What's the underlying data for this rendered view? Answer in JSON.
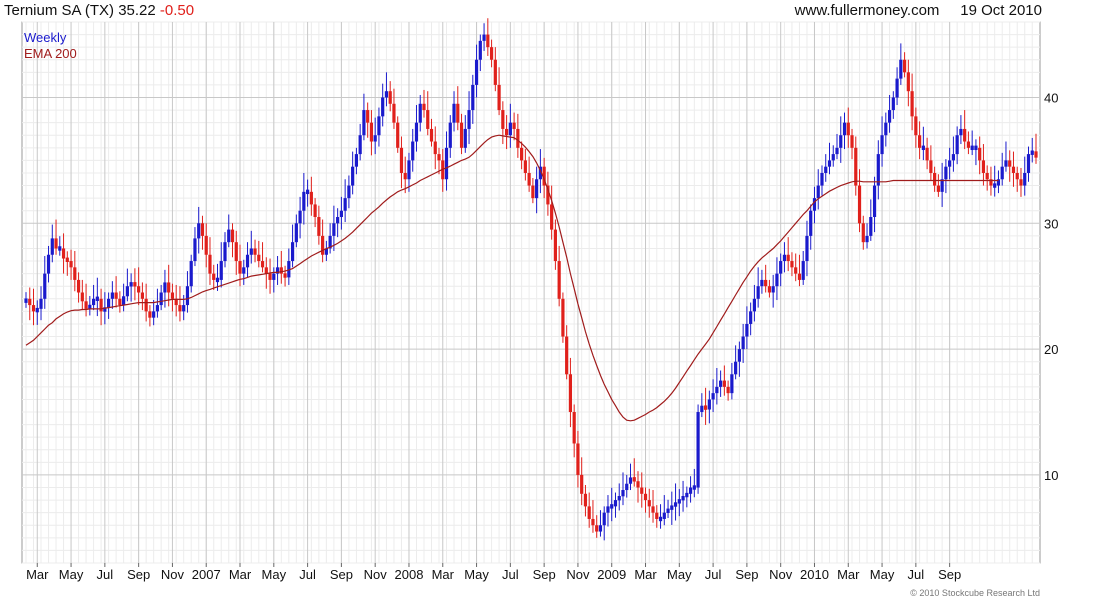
{
  "header": {
    "ticker": "Ternium SA (TX)",
    "price": "35.22",
    "change": "-0.50",
    "site": "www.fullermoney.com",
    "date": "19 Oct 2010"
  },
  "legend": {
    "weekly": "Weekly",
    "ema": "EMA 200"
  },
  "copyright": "© 2010 Stockcube Research Ltd",
  "colors": {
    "up": "#1a1acc",
    "down": "#e0201b",
    "ema": "#a01c1c",
    "grid": "#c8c8c8",
    "minorgrid": "#ececec"
  },
  "chart_data": {
    "type": "line",
    "title": "Ternium SA (TX) 35.22 -0.50",
    "ylabel": "",
    "ylim": [
      3,
      46
    ],
    "y_ticks": [
      10,
      20,
      30,
      40
    ],
    "x_ticks": [
      "Mar",
      "May",
      "Jul",
      "Sep",
      "Nov",
      "2007",
      "Mar",
      "May",
      "Jul",
      "Sep",
      "Nov",
      "2008",
      "Mar",
      "May",
      "Jul",
      "Sep",
      "Nov",
      "2009",
      "Mar",
      "May",
      "Jul",
      "Sep",
      "Nov",
      "2010",
      "Mar",
      "May",
      "Jul",
      "Sep"
    ],
    "x_tick_weeks": [
      3,
      12,
      21,
      30,
      39,
      48,
      57,
      66,
      75,
      84,
      93,
      102,
      111,
      120,
      129,
      138,
      147,
      156,
      165,
      174,
      183,
      192,
      201,
      210,
      219,
      228,
      237,
      246
    ],
    "series": [
      {
        "name": "Weekly",
        "style": "candlestick",
        "values": [
          24,
          23.5,
          23,
          23.2,
          24,
          26,
          27.5,
          28.8,
          28,
          28,
          27.2,
          27,
          26.5,
          25.5,
          24.5,
          23.8,
          23.2,
          23.5,
          24,
          24,
          23,
          23.3,
          24,
          24.5,
          24,
          23.5,
          24.2,
          25,
          25.3,
          25,
          24.5,
          24,
          23,
          22.5,
          23,
          23.5,
          24.5,
          25.3,
          24.5,
          24,
          23.5,
          23,
          23.5,
          25,
          27,
          28.8,
          30,
          29,
          27.5,
          26,
          25.5,
          25.5,
          27,
          28.5,
          29.5,
          28.5,
          27,
          26,
          26.5,
          27.5,
          28,
          27.5,
          27,
          26.5,
          26,
          25.5,
          26,
          26.5,
          26,
          25.7,
          27,
          28.5,
          30,
          31,
          32.5,
          32.5,
          31.5,
          30.5,
          29,
          27.5,
          28,
          29,
          30,
          30.5,
          31,
          32,
          33,
          34.5,
          35.5,
          37,
          39,
          38,
          36.5,
          37,
          38.5,
          40,
          40.5,
          39.5,
          38,
          36,
          34,
          33.5,
          35,
          36.5,
          38,
          39.5,
          39,
          37.5,
          36.5,
          35.5,
          35,
          33.5,
          36,
          38,
          39.5,
          38,
          36,
          37.5,
          39,
          41,
          43,
          44.5,
          45,
          44,
          43,
          41,
          39,
          37.5,
          37,
          38,
          37.5,
          36,
          35,
          34,
          33,
          32,
          33.5,
          34.5,
          33,
          31.5,
          29.5,
          27,
          24,
          21,
          18,
          15,
          12.5,
          10,
          8.5,
          7.5,
          6.5,
          6,
          5.5,
          6,
          7,
          7.5,
          7.5,
          8,
          8.3,
          8.8,
          9.3,
          9.8,
          9.5,
          9,
          8.5,
          8,
          7.5,
          7,
          6.5,
          6.5,
          7,
          7.3,
          7.5,
          7.8,
          8,
          8.3,
          8.5,
          9,
          9,
          15,
          15.5,
          15.2,
          16,
          16.5,
          17,
          17.5,
          17,
          16.5,
          18,
          19,
          20,
          21,
          22,
          23,
          24,
          25,
          25.5,
          25,
          24.5,
          25,
          26,
          27,
          27.5,
          27,
          26.5,
          26,
          25.5,
          27,
          29,
          31,
          32,
          33,
          34,
          34.5,
          35,
          35.5,
          36,
          37,
          38,
          37,
          36,
          33,
          30,
          28.5,
          29,
          30.5,
          33,
          35.5,
          37,
          38,
          39,
          40,
          41.5,
          43,
          42,
          40.5,
          38.5,
          37,
          36,
          36,
          35,
          34,
          33,
          32.5,
          33.5,
          34.5,
          35,
          35.5,
          37,
          37.5,
          36.5,
          36,
          36,
          36,
          35,
          34,
          33.5,
          33,
          33,
          33.5,
          34.5,
          35,
          34.5,
          34,
          33.5,
          33,
          34,
          35.5,
          35.72,
          35.22
        ]
      },
      {
        "name": "EMA 200",
        "style": "line",
        "values": [
          20.3,
          20.5,
          20.7,
          21,
          21.3,
          21.6,
          21.9,
          22.1,
          22.4,
          22.6,
          22.8,
          22.95,
          23.05,
          23.1,
          23.1,
          23.15,
          23.15,
          23.2,
          23.2,
          23.2,
          23.2,
          23.25,
          23.3,
          23.35,
          23.4,
          23.45,
          23.5,
          23.55,
          23.6,
          23.65,
          23.7,
          23.7,
          23.7,
          23.7,
          23.7,
          23.75,
          23.8,
          23.85,
          23.9,
          23.95,
          23.95,
          23.95,
          23.95,
          24,
          24.1,
          24.25,
          24.4,
          24.55,
          24.65,
          24.75,
          24.85,
          24.95,
          25.05,
          25.15,
          25.25,
          25.35,
          25.45,
          25.55,
          25.6,
          25.7,
          25.8,
          25.85,
          25.9,
          25.95,
          26,
          26.05,
          26.1,
          26.1,
          26.15,
          26.2,
          26.3,
          26.4,
          26.6,
          26.8,
          27,
          27.2,
          27.4,
          27.55,
          27.7,
          27.85,
          28,
          28.1,
          28.25,
          28.4,
          28.6,
          28.8,
          29.05,
          29.3,
          29.6,
          29.9,
          30.2,
          30.5,
          30.8,
          31.05,
          31.3,
          31.6,
          31.85,
          32.1,
          32.3,
          32.5,
          32.65,
          32.75,
          32.9,
          33.05,
          33.2,
          33.4,
          33.55,
          33.7,
          33.85,
          34,
          34.15,
          34.3,
          34.4,
          34.55,
          34.7,
          34.85,
          35,
          35.1,
          35.25,
          35.5,
          35.8,
          36.1,
          36.4,
          36.65,
          36.85,
          36.95,
          37,
          36.95,
          36.9,
          36.85,
          36.8,
          36.6,
          36.35,
          36.05,
          35.7,
          35.3,
          34.8,
          34.2,
          33.5,
          32.7,
          31.8,
          30.8,
          29.7,
          28.5,
          27.3,
          26,
          24.8,
          23.6,
          22.5,
          21.4,
          20.4,
          19.5,
          18.7,
          17.9,
          17.2,
          16.6,
          16,
          15.5,
          15,
          14.6,
          14.35,
          14.3,
          14.35,
          14.5,
          14.65,
          14.8,
          15,
          15.15,
          15.35,
          15.6,
          15.85,
          16.15,
          16.5,
          16.9,
          17.35,
          17.8,
          18.25,
          18.7,
          19.15,
          19.6,
          20,
          20.4,
          20.8,
          21.3,
          21.8,
          22.3,
          22.8,
          23.3,
          23.8,
          24.3,
          24.8,
          25.3,
          25.75,
          26.2,
          26.6,
          26.95,
          27.25,
          27.5,
          27.75,
          28,
          28.3,
          28.6,
          28.95,
          29.3,
          29.65,
          30,
          30.35,
          30.7,
          31,
          31.35,
          31.7,
          31.95,
          32.15,
          32.35,
          32.55,
          32.7,
          32.85,
          33,
          33.1,
          33.2,
          33.3,
          33.35,
          33.35,
          33.3,
          33.3,
          33.3,
          33.3,
          33.3,
          33.3,
          33.3,
          33.35,
          33.4,
          33.4,
          33.4,
          33.4,
          33.4,
          33.4,
          33.4,
          33.4,
          33.4,
          33.4,
          33.4,
          33.4,
          33.4,
          33.4,
          33.4,
          33.4,
          33.4,
          33.4,
          33.4,
          33.4,
          33.4,
          33.4,
          33.4,
          33.4,
          33.4,
          33.4,
          33.4,
          33.4,
          33.4
        ]
      }
    ],
    "grid": true,
    "legend_position": "top-left"
  }
}
